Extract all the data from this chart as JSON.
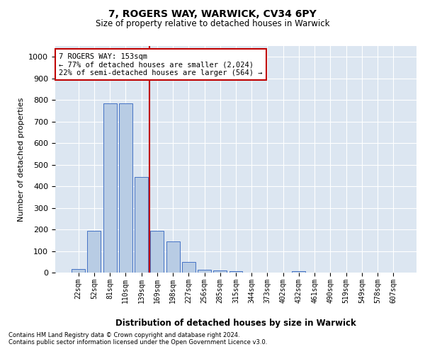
{
  "title": "7, ROGERS WAY, WARWICK, CV34 6PY",
  "subtitle": "Size of property relative to detached houses in Warwick",
  "xlabel": "Distribution of detached houses by size in Warwick",
  "ylabel": "Number of detached properties",
  "footnote1": "Contains HM Land Registry data © Crown copyright and database right 2024.",
  "footnote2": "Contains public sector information licensed under the Open Government Licence v3.0.",
  "categories": [
    "22sqm",
    "52sqm",
    "81sqm",
    "110sqm",
    "139sqm",
    "169sqm",
    "198sqm",
    "227sqm",
    "256sqm",
    "285sqm",
    "315sqm",
    "344sqm",
    "373sqm",
    "402sqm",
    "432sqm",
    "461sqm",
    "490sqm",
    "519sqm",
    "549sqm",
    "578sqm",
    "607sqm"
  ],
  "values": [
    15,
    193,
    785,
    785,
    443,
    193,
    143,
    48,
    13,
    10,
    8,
    0,
    0,
    0,
    8,
    0,
    0,
    0,
    0,
    0,
    0
  ],
  "bar_color": "#b8cce4",
  "bar_edge_color": "#4472c4",
  "fig_bg_color": "#ffffff",
  "plot_bg_color": "#dce6f1",
  "grid_color": "#ffffff",
  "vline_x": 4.5,
  "vline_color": "#c00000",
  "annotation_text": "7 ROGERS WAY: 153sqm\n← 77% of detached houses are smaller (2,024)\n22% of semi-detached houses are larger (564) →",
  "annotation_box_color": "#ffffff",
  "annotation_box_edge": "#c00000",
  "ylim": [
    0,
    1050
  ],
  "yticks": [
    0,
    100,
    200,
    300,
    400,
    500,
    600,
    700,
    800,
    900,
    1000
  ]
}
